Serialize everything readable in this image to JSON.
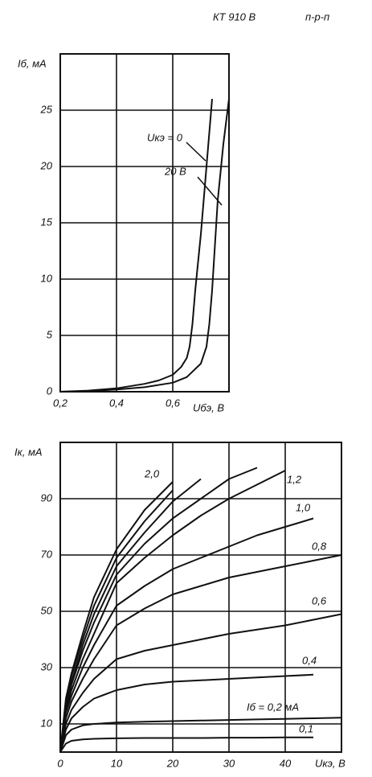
{
  "header": {
    "title": "КТ 910 В",
    "structure": "п-р-п"
  },
  "chart_data": [
    {
      "type": "line",
      "y_label": "Iб, мА",
      "x_label": "Uбэ, В",
      "xlim": [
        0.2,
        0.8
      ],
      "ylim": [
        0,
        30
      ],
      "xticks": [
        {
          "value": 0.2,
          "label": "0,2"
        },
        {
          "value": 0.4,
          "label": "0,4"
        },
        {
          "value": 0.6,
          "label": "0,6"
        }
      ],
      "yticks": [
        0,
        5,
        10,
        15,
        20,
        25
      ],
      "grid": true,
      "series": [
        {
          "name": "Uкэ = 0",
          "color": "#111111",
          "x": [
            0.2,
            0.3,
            0.4,
            0.5,
            0.55,
            0.6,
            0.63,
            0.65,
            0.66,
            0.67,
            0.68,
            0.7,
            0.72,
            0.74
          ],
          "values": [
            0,
            0.1,
            0.3,
            0.7,
            1.0,
            1.5,
            2.2,
            3,
            4,
            6,
            9,
            14,
            20,
            26
          ]
        },
        {
          "name": "20 В",
          "color": "#111111",
          "x": [
            0.2,
            0.3,
            0.4,
            0.5,
            0.6,
            0.65,
            0.7,
            0.72,
            0.73,
            0.74,
            0.75,
            0.76,
            0.78,
            0.8
          ],
          "values": [
            0,
            0.05,
            0.2,
            0.4,
            0.8,
            1.3,
            2.5,
            4,
            6,
            9,
            13,
            17,
            22,
            26
          ]
        }
      ]
    },
    {
      "type": "line",
      "y_label": "Iк, мА",
      "x_label": "Uкэ, В",
      "xlim": [
        0,
        50
      ],
      "ylim": [
        0,
        110
      ],
      "xticks": [
        0,
        10,
        20,
        30,
        40
      ],
      "yticks": [
        10,
        30,
        50,
        70,
        90
      ],
      "grid": true,
      "x": [
        0,
        1,
        2,
        4,
        6,
        10,
        15,
        20,
        25,
        30,
        35,
        40,
        45,
        50
      ],
      "series": [
        {
          "name": "0,1",
          "color": "#111111",
          "values": [
            0,
            3,
            4,
            4.5,
            4.7,
            4.9,
            5,
            5,
            5,
            5.1,
            5.1,
            5.2,
            5.2,
            null
          ]
        },
        {
          "name": "Iб = 0,2 мА",
          "color": "#111111",
          "values": [
            0,
            6,
            8,
            9.5,
            10,
            10.5,
            10.8,
            11,
            11.2,
            11.4,
            11.6,
            11.8,
            12,
            12.2
          ]
        },
        {
          "name": "0,4",
          "color": "#111111",
          "values": [
            0,
            8,
            12,
            16,
            19,
            22,
            24,
            25,
            25.5,
            26,
            26.5,
            27,
            27.5,
            null
          ]
        },
        {
          "name": "0,6",
          "color": "#111111",
          "values": [
            0,
            10,
            15,
            21,
            26,
            33,
            36,
            38,
            40,
            42,
            43.5,
            45,
            47,
            49
          ]
        },
        {
          "name": "0,8",
          "color": "#111111",
          "values": [
            0,
            12,
            18,
            26,
            33,
            45,
            51,
            56,
            59,
            62,
            64,
            66,
            68,
            70
          ]
        },
        {
          "name": "1,0",
          "color": "#111111",
          "values": [
            0,
            14,
            20,
            30,
            38,
            52,
            59,
            65,
            69,
            73,
            77,
            80,
            83,
            null
          ]
        },
        {
          "name": "1,2",
          "color": "#111111",
          "values": [
            0,
            15,
            22,
            33,
            42,
            60,
            69,
            77,
            84,
            90,
            95,
            100,
            null,
            null
          ]
        },
        {
          "color": "#111111",
          "values": [
            0,
            16,
            24,
            36,
            46,
            63,
            74,
            83,
            90,
            97,
            101,
            null,
            null,
            null
          ]
        },
        {
          "color": "#111111",
          "values": [
            0,
            17,
            25,
            38,
            49,
            66,
            78,
            89,
            97,
            null,
            null,
            null,
            null,
            null
          ]
        },
        {
          "color": "#111111",
          "values": [
            0,
            18,
            27,
            40,
            52,
            69,
            82,
            93,
            null,
            null,
            null,
            null,
            null,
            null
          ]
        },
        {
          "name": "2,0",
          "color": "#111111",
          "values": [
            0,
            19,
            28,
            42,
            55,
            72,
            86,
            96,
            null,
            null,
            null,
            null,
            null,
            null
          ]
        }
      ]
    }
  ]
}
